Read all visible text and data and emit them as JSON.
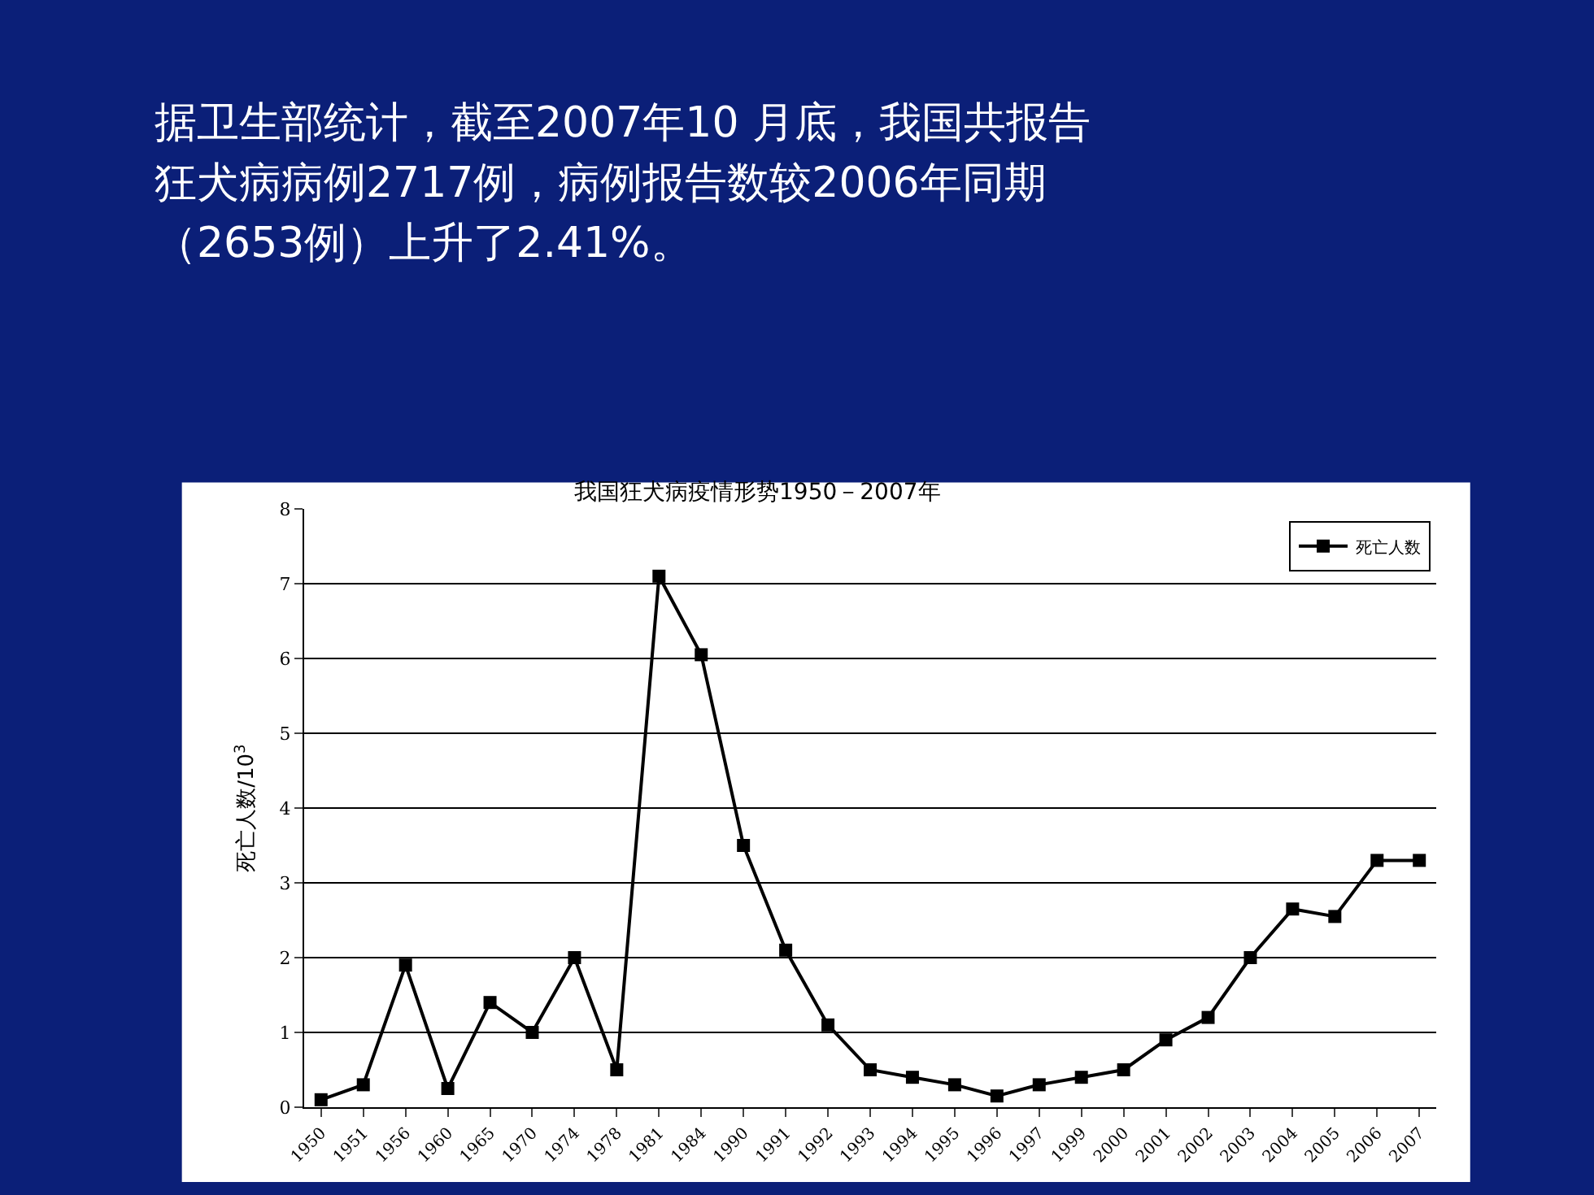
{
  "chart_data": {
    "type": "line",
    "title": "我国狂犬病疫情形势1950－2007年",
    "annotations": [
      "据卫生部统计，截至2007年10 月底，我国共报告",
      "狂犬病病例2717例，病例报告数较2006年同期",
      "（2653例）上升了2.41%。"
    ],
    "ylabel": "死亡人数/10$^{3}$",
    "categories": [
      "1950",
      "1951",
      "1956",
      "1960",
      "1965",
      "1970",
      "1974",
      "1978",
      "1981",
      "1984",
      "1990",
      "1991",
      "1992",
      "1993",
      "1994",
      "1995",
      "1996",
      "1997",
      "1999",
      "2000",
      "2001",
      "2002",
      "2003",
      "2004",
      "2005",
      "2006",
      "2007"
    ],
    "series": [
      {
        "name": "死亡人数",
        "color": "#000000",
        "values": [
          0.1,
          0.3,
          1.9,
          0.25,
          1.4,
          1.0,
          2.0,
          0.5,
          7.1,
          6.05,
          3.5,
          2.1,
          1.1,
          0.5,
          0.4,
          0.3,
          0.15,
          0.3,
          0.4,
          0.5,
          0.9,
          1.2,
          2.0,
          2.65,
          2.55,
          3.3,
          3.3
        ]
      }
    ],
    "ylim": [
      0,
      8
    ],
    "yticks": [
      0,
      1,
      2,
      3,
      4,
      5,
      6,
      7,
      8
    ],
    "grid": "y",
    "legend": "top right",
    "marker": "square",
    "line_style": "solid"
  }
}
